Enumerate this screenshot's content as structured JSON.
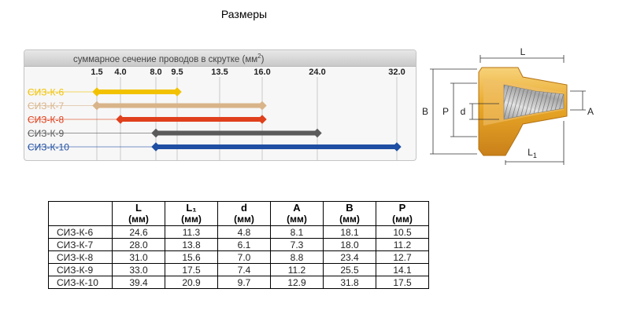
{
  "page": {
    "title": "Размеры"
  },
  "range_chart": {
    "caption": "суммарное сечение проводов в скрутке (мм",
    "caption_sup": "2",
    "caption_end": ")",
    "ticks": [
      "1.5",
      "4.0",
      "8.0",
      "9.5",
      "13.5",
      "16.0",
      "24.0",
      "32.0"
    ],
    "rows": [
      {
        "label": "СИЗ-К-6",
        "from": 1.5,
        "to": 9.5,
        "color": "#f2c200"
      },
      {
        "label": "СИЗ-К-7",
        "from": 1.5,
        "to": 16.0,
        "color": "#d9b48a"
      },
      {
        "label": "СИЗ-К-8",
        "from": 4.0,
        "to": 16.0,
        "color": "#e0401c"
      },
      {
        "label": "СИЗ-К-9",
        "from": 8.0,
        "to": 24.0,
        "color": "#5a5a5a"
      },
      {
        "label": "СИЗ-К-10",
        "from": 8.0,
        "to": 32.0,
        "color": "#1f4fa3"
      }
    ]
  },
  "diagram": {
    "labels": {
      "L": "L",
      "L1": "L",
      "L1_sub": "1",
      "B": "B",
      "P": "P",
      "d": "d",
      "A": "A"
    }
  },
  "table": {
    "headers": [
      {
        "name": "",
        "unit": ""
      },
      {
        "name": "L",
        "unit": "(мм)"
      },
      {
        "name": "L₁",
        "unit": "(мм)"
      },
      {
        "name": "d",
        "unit": "(мм)"
      },
      {
        "name": "A",
        "unit": "(мм)"
      },
      {
        "name": "B",
        "unit": "(мм)"
      },
      {
        "name": "P",
        "unit": "(мм)"
      }
    ],
    "rows": [
      [
        "СИЗ-К-6",
        "24.6",
        "11.3",
        "4.8",
        "8.1",
        "18.1",
        "10.5"
      ],
      [
        "СИЗ-К-7",
        "28.0",
        "13.8",
        "6.1",
        "7.3",
        "18.0",
        "11.2"
      ],
      [
        "СИЗ-К-8",
        "31.0",
        "15.6",
        "7.0",
        "8.8",
        "23.4",
        "12.7"
      ],
      [
        "СИЗ-К-9",
        "33.0",
        "17.5",
        "7.4",
        "11.2",
        "25.5",
        "14.1"
      ],
      [
        "СИЗ-К-10",
        "39.4",
        "20.9",
        "9.7",
        "12.9",
        "31.8",
        "17.5"
      ]
    ]
  }
}
